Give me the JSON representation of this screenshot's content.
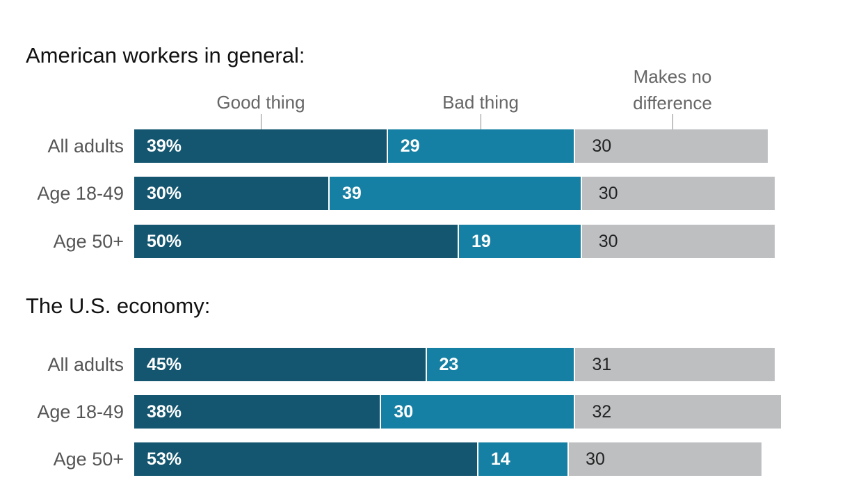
{
  "chart_data": {
    "type": "bar",
    "stacked": true,
    "orientation": "horizontal",
    "legend": [
      "Good thing",
      "Bad thing",
      "Makes no difference"
    ],
    "colors": [
      "#14566f",
      "#1580a3",
      "#bdbfc1"
    ],
    "panels": [
      {
        "title": "American workers in general:",
        "categories": [
          "All adults",
          "Age 18-49",
          "Age 50+"
        ],
        "series": [
          {
            "name": "Good thing",
            "values": [
              39,
              30,
              50
            ],
            "labels": [
              "39%",
              "30%",
              "50%"
            ]
          },
          {
            "name": "Bad thing",
            "values": [
              29,
              39,
              19
            ],
            "labels": [
              "29",
              "39",
              "19"
            ]
          },
          {
            "name": "Makes no difference",
            "values": [
              30,
              30,
              30
            ],
            "labels": [
              "30",
              "30",
              "30"
            ]
          }
        ]
      },
      {
        "title": "The U.S. economy:",
        "categories": [
          "All adults",
          "Age 18-49",
          "Age 50+"
        ],
        "series": [
          {
            "name": "Good thing",
            "values": [
              45,
              38,
              53
            ],
            "labels": [
              "45%",
              "38%",
              "53%"
            ]
          },
          {
            "name": "Bad thing",
            "values": [
              23,
              30,
              14
            ],
            "labels": [
              "23",
              "30",
              "14"
            ]
          },
          {
            "name": "Makes no difference",
            "values": [
              31,
              32,
              30
            ],
            "labels": [
              "31",
              "32",
              "30"
            ]
          }
        ]
      }
    ]
  },
  "legend_labels": {
    "good": "Good thing",
    "bad": "Bad thing",
    "none_line1": "Makes no",
    "none_line2": "difference"
  }
}
